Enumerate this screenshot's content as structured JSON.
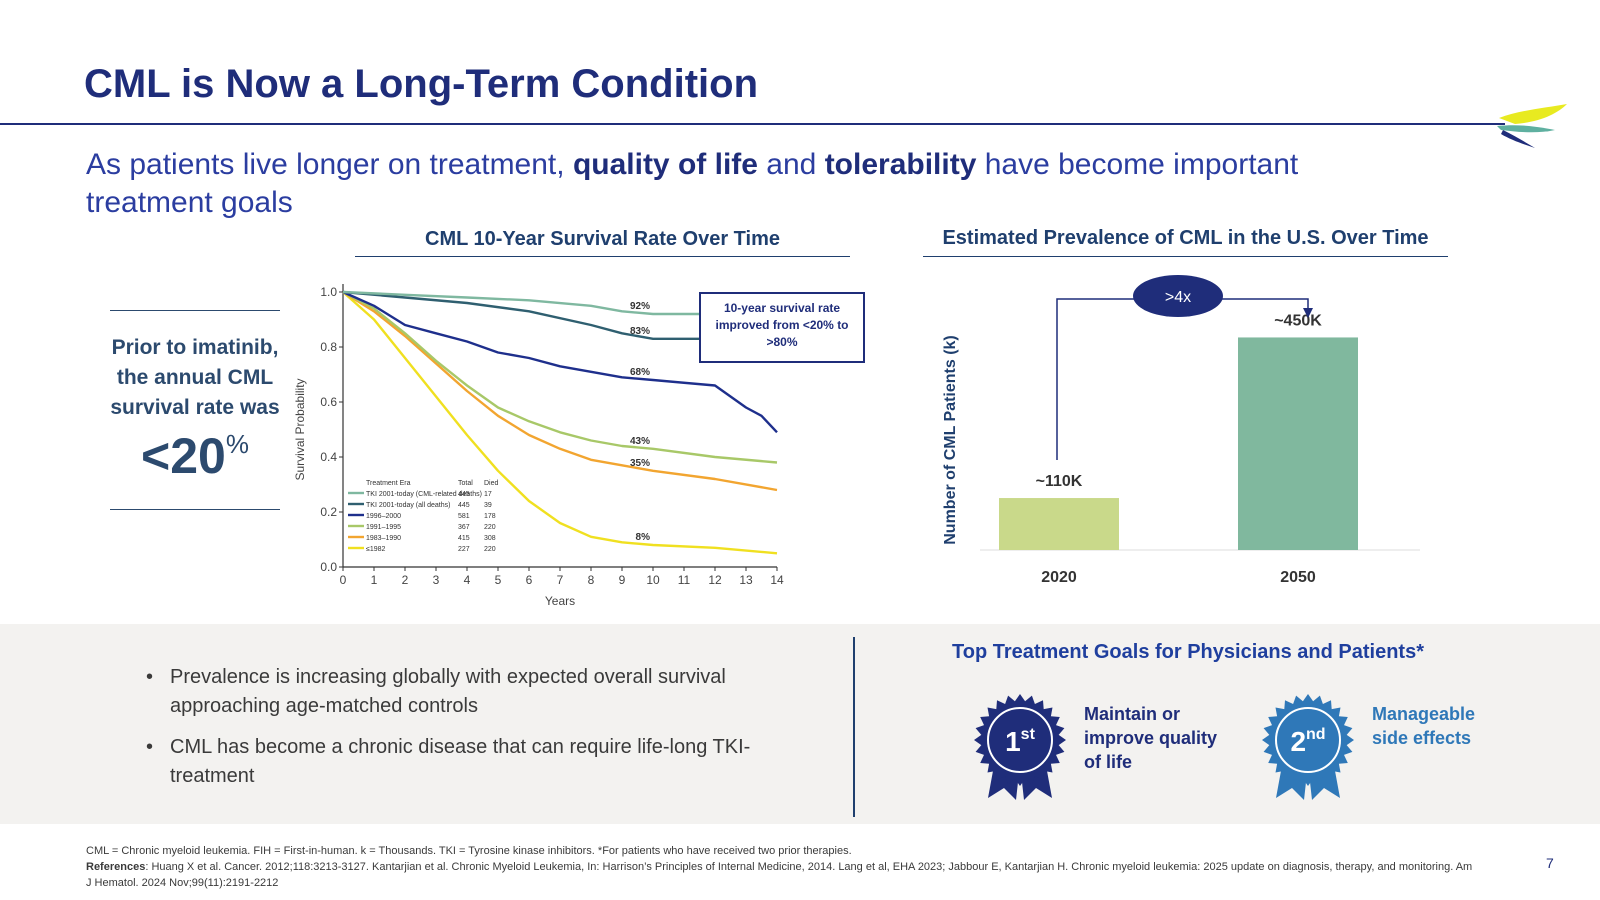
{
  "title": "CML is Now a Long-Term Condition",
  "subtitle": {
    "part1": "As patients live longer on treatment, ",
    "bold1": "quality of life",
    "part2": " and ",
    "bold2": "tolerability",
    "part3": " have become important treatment goals"
  },
  "left_panel": {
    "text": "Prior to imatinib, the annual CML survival rate was",
    "value": "<20",
    "unit": "%"
  },
  "callout": {
    "text": "10-year survival rate improved from <20% to >80%"
  },
  "colors": {
    "navy": "#1f2d7a",
    "teal_light": "#7fb8a0",
    "teal_dark": "#2f5f70",
    "blue_dark": "#1e2f8c",
    "green": "#a8c868",
    "orange": "#f2a530",
    "yellow": "#f0e020",
    "bar_2020": "#c9d98a",
    "bar_2050": "#80b89e",
    "badge_first": "#1f2d7a",
    "badge_second": "#2f78b8"
  },
  "chart_data": [
    {
      "type": "line",
      "title": "CML 10-Year Survival Rate Over Time",
      "xlabel": "Years",
      "ylabel": "Survival Probability",
      "xlim": [
        0,
        14
      ],
      "ylim": [
        0,
        1.0
      ],
      "x_ticks": [
        "0",
        "1",
        "2",
        "3",
        "4",
        "5",
        "6",
        "7",
        "8",
        "9",
        "10",
        "11",
        "12",
        "13",
        "14"
      ],
      "y_ticks": [
        "0.0",
        "0.2",
        "0.4",
        "0.6",
        "0.8",
        "1.0"
      ],
      "legend": {
        "header": [
          "Treatment Era",
          "Total",
          "Died"
        ],
        "rows": [
          {
            "era": "TKI 2001-today (CML-related deaths)",
            "total": "445",
            "died": "17"
          },
          {
            "era": "TKI 2001-today (all deaths)",
            "total": "445",
            "died": "39"
          },
          {
            "era": "1996–2000",
            "total": "581",
            "died": "178"
          },
          {
            "era": "1991–1995",
            "total": "367",
            "died": "220"
          },
          {
            "era": "1983–1990",
            "total": "415",
            "died": "308"
          },
          {
            "era": "≤1982",
            "total": "227",
            "died": "220"
          }
        ]
      },
      "series": [
        {
          "name": "TKI 2001-today (CML-related deaths)",
          "color": "#7fb8a0",
          "end_label": "92%",
          "points": [
            [
              0,
              1.0
            ],
            [
              2,
              0.99
            ],
            [
              4,
              0.98
            ],
            [
              6,
              0.97
            ],
            [
              8,
              0.95
            ],
            [
              9,
              0.93
            ],
            [
              10,
              0.92
            ],
            [
              12,
              0.92
            ],
            [
              14,
              0.92
            ]
          ]
        },
        {
          "name": "TKI 2001-today (all deaths)",
          "color": "#2f5f70",
          "end_label": "83%",
          "points": [
            [
              0,
              1.0
            ],
            [
              2,
              0.98
            ],
            [
              4,
              0.96
            ],
            [
              6,
              0.93
            ],
            [
              8,
              0.88
            ],
            [
              9,
              0.85
            ],
            [
              10,
              0.83
            ],
            [
              12,
              0.83
            ],
            [
              14,
              0.83
            ]
          ]
        },
        {
          "name": "1996–2000",
          "color": "#1e2f8c",
          "end_label": "68%",
          "points": [
            [
              0,
              1.0
            ],
            [
              1,
              0.95
            ],
            [
              2,
              0.88
            ],
            [
              3,
              0.85
            ],
            [
              4,
              0.82
            ],
            [
              5,
              0.78
            ],
            [
              6,
              0.76
            ],
            [
              7,
              0.73
            ],
            [
              8,
              0.71
            ],
            [
              9,
              0.69
            ],
            [
              10,
              0.68
            ],
            [
              12,
              0.66
            ],
            [
              13,
              0.58
            ],
            [
              13.5,
              0.55
            ],
            [
              14,
              0.49
            ]
          ]
        },
        {
          "name": "1991–1995",
          "color": "#a8c868",
          "end_label": "43%",
          "points": [
            [
              0,
              1.0
            ],
            [
              1,
              0.94
            ],
            [
              2,
              0.85
            ],
            [
              3,
              0.75
            ],
            [
              4,
              0.66
            ],
            [
              5,
              0.58
            ],
            [
              6,
              0.53
            ],
            [
              7,
              0.49
            ],
            [
              8,
              0.46
            ],
            [
              9,
              0.44
            ],
            [
              10,
              0.43
            ],
            [
              12,
              0.4
            ],
            [
              14,
              0.38
            ]
          ]
        },
        {
          "name": "1983–1990",
          "color": "#f2a530",
          "end_label": "35%",
          "points": [
            [
              0,
              1.0
            ],
            [
              1,
              0.93
            ],
            [
              2,
              0.84
            ],
            [
              3,
              0.74
            ],
            [
              4,
              0.64
            ],
            [
              5,
              0.55
            ],
            [
              6,
              0.48
            ],
            [
              7,
              0.43
            ],
            [
              8,
              0.39
            ],
            [
              9,
              0.37
            ],
            [
              10,
              0.35
            ],
            [
              12,
              0.32
            ],
            [
              14,
              0.28
            ]
          ]
        },
        {
          "name": "≤1982",
          "color": "#f0e020",
          "end_label": "8%",
          "points": [
            [
              0,
              1.0
            ],
            [
              1,
              0.9
            ],
            [
              2,
              0.76
            ],
            [
              3,
              0.62
            ],
            [
              4,
              0.48
            ],
            [
              5,
              0.35
            ],
            [
              6,
              0.24
            ],
            [
              7,
              0.16
            ],
            [
              8,
              0.11
            ],
            [
              9,
              0.09
            ],
            [
              10,
              0.08
            ],
            [
              12,
              0.07
            ],
            [
              14,
              0.05
            ]
          ]
        }
      ]
    },
    {
      "type": "bar",
      "title": "Estimated Prevalence of CML in the U.S. Over Time",
      "xlabel": "",
      "ylabel": "Number of CML Patients (k)",
      "categories": [
        "2020",
        "2050"
      ],
      "values": [
        110,
        450
      ],
      "data_labels": [
        "~110K",
        "~450K"
      ],
      "annotation": ">4x",
      "ylim": [
        0,
        600
      ]
    }
  ],
  "bullets": [
    "Prevalence is increasing globally with expected overall survival approaching age-matched controls",
    "CML has become a chronic disease that can require life-long TKI-treatment"
  ],
  "goals": {
    "title": "Top Treatment Goals for Physicians and Patients*",
    "items": [
      {
        "rank": "1",
        "suffix": "st",
        "label": "Maintain or improve quality of life"
      },
      {
        "rank": "2",
        "suffix": "nd",
        "label": "Manageable side effects"
      }
    ]
  },
  "footnote": {
    "line1": "CML = Chronic myeloid leukemia. FIH = First-in-human. k = Thousands. TKI = Tyrosine kinase inhibitors. *For patients who have received two prior therapies.",
    "ref_label": "References",
    "refs": ": Huang X et al. Cancer. 2012;118:3213-3127. Kantarjian et al. Chronic Myeloid Leukemia, In: Harrison’s Principles of Internal Medicine, 2014. Lang et al, EHA 2023; Jabbour E, Kantarjian H. Chronic myeloid leukemia: 2025 update on diagnosis, therapy, and monitoring. Am J Hematol. 2024 Nov;99(11):2191-2212"
  },
  "page_number": "7"
}
